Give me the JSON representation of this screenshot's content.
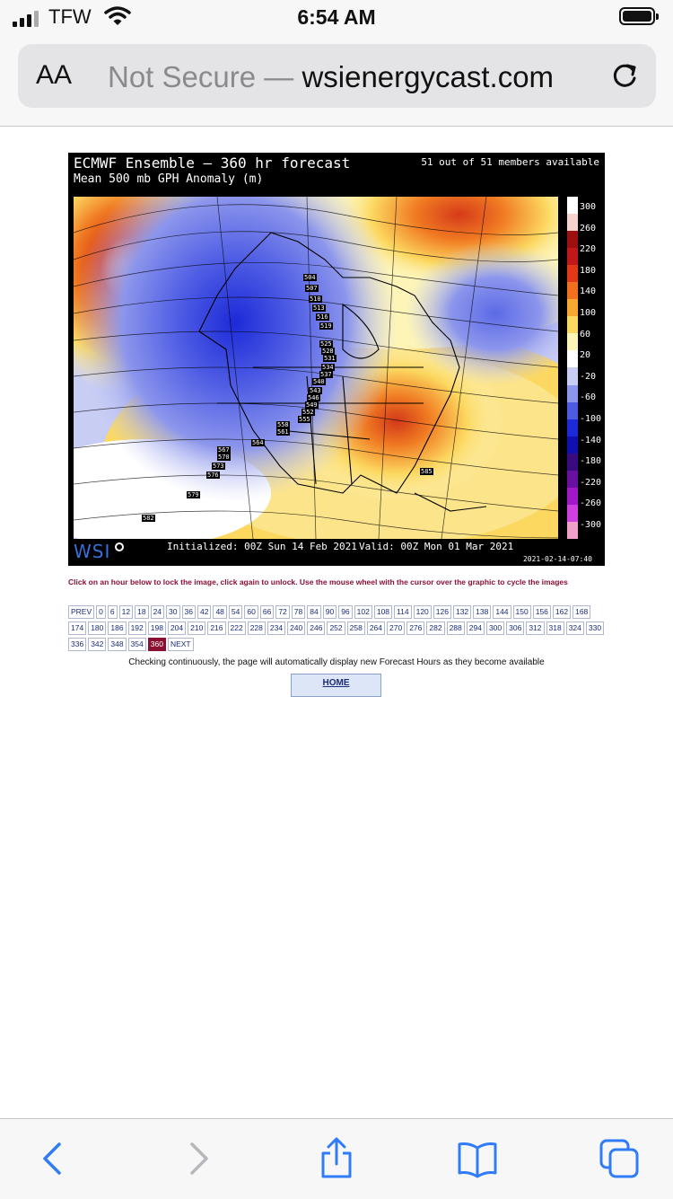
{
  "status_bar": {
    "carrier": "TFW",
    "time": "6:54 AM"
  },
  "address_bar": {
    "text_size_label": "AA",
    "security": "Not Secure",
    "separator": "—",
    "domain": "wsienergycast.com"
  },
  "map": {
    "title": "ECMWF Ensemble  –  360 hr forecast",
    "subtitle": "Mean 500 mb GPH Anomaly (m)",
    "members": "51 out of 51 members available",
    "logo": "WSI",
    "initialized": "Initialized: 00Z Sun 14 Feb 2021",
    "valid": "Valid: 00Z Mon 01 Mar 2021",
    "stamp": "2021-02-14-07:40",
    "scale_labels": [
      "300",
      "260",
      "220",
      "180",
      "140",
      "100",
      "60",
      "20",
      "-20",
      "-60",
      "-100",
      "-140",
      "-180",
      "-220",
      "-260",
      "-300"
    ],
    "scale_colors": [
      "#ffffff",
      "#f4d4cc",
      "#9c1010",
      "#c01818",
      "#e03818",
      "#f07020",
      "#f8a830",
      "#fcd860",
      "#fdf4b8",
      "#ffffff",
      "#c8cdf4",
      "#8c96ec",
      "#4e5ce4",
      "#1c2ad8",
      "#1010b0",
      "#3a0a80",
      "#6a10a0",
      "#a018c8",
      "#d040e0",
      "#f0a0c8"
    ],
    "height_labels": [
      "504",
      "507",
      "510",
      "513",
      "516",
      "519",
      "525",
      "528",
      "531",
      "534",
      "537",
      "540",
      "543",
      "546",
      "549",
      "552",
      "555",
      "558",
      "561",
      "564",
      "567",
      "570",
      "573",
      "576",
      "579",
      "582",
      "585"
    ]
  },
  "instructions": "Click on an hour below to lock the image, click again to unlock. Use the mouse wheel with the cursor over the graphic to cycle the images",
  "hours": {
    "prev_label": "PREV",
    "next_label": "NEXT",
    "active": "360",
    "list": [
      "0",
      "6",
      "12",
      "18",
      "24",
      "30",
      "36",
      "42",
      "48",
      "54",
      "60",
      "66",
      "72",
      "78",
      "84",
      "90",
      "96",
      "102",
      "108",
      "114",
      "120",
      "126",
      "132",
      "138",
      "144",
      "150",
      "156",
      "162",
      "168",
      "174",
      "180",
      "186",
      "192",
      "198",
      "204",
      "210",
      "216",
      "222",
      "228",
      "234",
      "240",
      "246",
      "252",
      "258",
      "264",
      "270",
      "276",
      "282",
      "288",
      "294",
      "300",
      "306",
      "312",
      "318",
      "324",
      "330",
      "336",
      "342",
      "348",
      "354",
      "360"
    ]
  },
  "checking_text": "Checking continuously, the page will automatically display new Forecast Hours as they become available",
  "home_label": "HOME",
  "toolbar": {
    "icons": [
      "back-icon",
      "forward-icon",
      "share-icon",
      "bookmarks-icon",
      "tabs-icon"
    ]
  }
}
